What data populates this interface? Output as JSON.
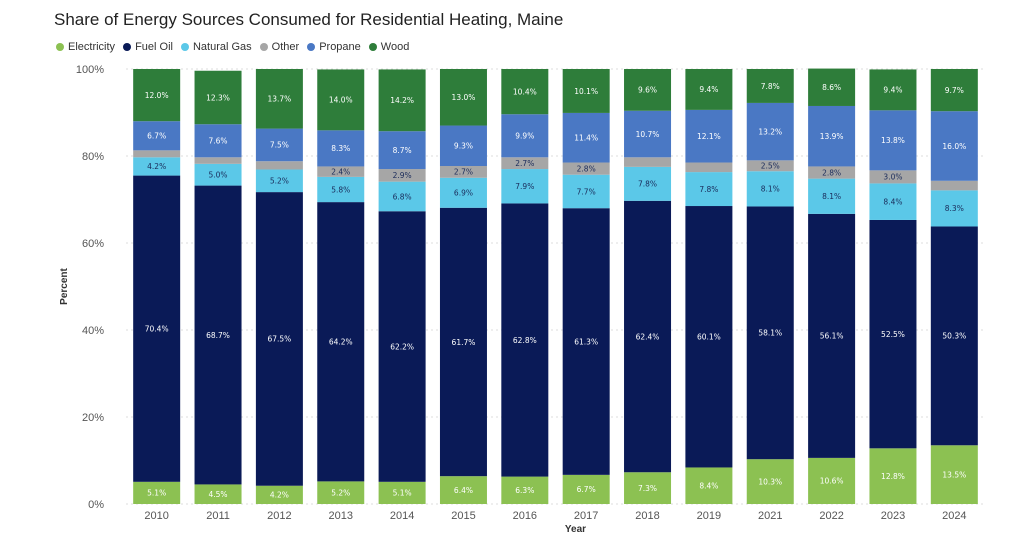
{
  "chart_data": {
    "type": "bar",
    "stacked": true,
    "title": "Share of Energy Sources Consumed for Residential Heating, Maine",
    "xlabel": "Year",
    "ylabel": "Percent",
    "ylim": [
      0,
      100
    ],
    "yticks": [
      "0%",
      "20%",
      "40%",
      "60%",
      "80%",
      "100%"
    ],
    "grid": true,
    "legend_position": "top-left",
    "categories": [
      "2010",
      "2011",
      "2012",
      "2013",
      "2014",
      "2015",
      "2016",
      "2017",
      "2018",
      "2019",
      "2021",
      "2022",
      "2023",
      "2024"
    ],
    "series": [
      {
        "name": "Electricity",
        "color": "#8cc152",
        "label_color": "#ffffff",
        "values": [
          5.1,
          4.5,
          4.2,
          5.2,
          5.1,
          6.4,
          6.3,
          6.7,
          7.3,
          8.4,
          10.3,
          10.6,
          12.8,
          13.5
        ],
        "labels": [
          "5.1%",
          "4.5%",
          "4.2%",
          "5.2%",
          "5.1%",
          "6.4%",
          "6.3%",
          "6.7%",
          "7.3%",
          "8.4%",
          "10.3%",
          "10.6%",
          "12.8%",
          "13.5%"
        ]
      },
      {
        "name": "Fuel Oil",
        "color": "#0a1a57",
        "label_color": "#ffffff",
        "values": [
          70.4,
          68.7,
          67.5,
          64.2,
          62.2,
          61.7,
          62.8,
          61.3,
          62.4,
          60.1,
          58.1,
          56.1,
          52.5,
          50.3
        ],
        "labels": [
          "70.4%",
          "68.7%",
          "67.5%",
          "64.2%",
          "62.2%",
          "61.7%",
          "62.8%",
          "61.3%",
          "62.4%",
          "60.1%",
          "58.1%",
          "56.1%",
          "52.5%",
          "50.3%"
        ]
      },
      {
        "name": "Natural Gas",
        "color": "#5bc8e8",
        "label_color": "#1a2b5a",
        "values": [
          4.2,
          5.0,
          5.2,
          5.8,
          6.8,
          6.9,
          7.9,
          7.7,
          7.8,
          7.8,
          8.1,
          8.1,
          8.4,
          8.3
        ],
        "labels": [
          "4.2%",
          "5.0%",
          "5.2%",
          "5.8%",
          "6.8%",
          "6.9%",
          "7.9%",
          "7.7%",
          "7.8%",
          "7.8%",
          "8.1%",
          "8.1%",
          "8.4%",
          "8.3%"
        ]
      },
      {
        "name": "Other",
        "color": "#a6a6a6",
        "label_color": "#1a2b5a",
        "values": [
          1.6,
          1.5,
          1.9,
          2.4,
          2.9,
          2.7,
          2.7,
          2.8,
          2.2,
          2.2,
          2.5,
          2.8,
          3.0,
          2.2
        ],
        "labels": [
          "",
          "",
          "",
          "2.4%",
          "2.9%",
          "2.7%",
          "2.7%",
          "2.8%",
          "",
          "",
          "2.5%",
          "2.8%",
          "3.0%",
          ""
        ]
      },
      {
        "name": "Propane",
        "color": "#4a78c4",
        "label_color": "#ffffff",
        "values": [
          6.7,
          7.6,
          7.5,
          8.3,
          8.7,
          9.3,
          9.9,
          11.4,
          10.7,
          12.1,
          13.2,
          13.9,
          13.8,
          16.0
        ],
        "labels": [
          "6.7%",
          "7.6%",
          "7.5%",
          "8.3%",
          "8.7%",
          "9.3%",
          "9.9%",
          "11.4%",
          "10.7%",
          "12.1%",
          "13.2%",
          "13.9%",
          "13.8%",
          "16.0%"
        ]
      },
      {
        "name": "Wood",
        "color": "#2e7d3a",
        "label_color": "#ffffff",
        "values": [
          12.0,
          12.3,
          13.7,
          14.0,
          14.2,
          13.0,
          10.4,
          10.1,
          9.6,
          9.4,
          7.8,
          8.6,
          9.4,
          9.7
        ],
        "labels": [
          "12.0%",
          "12.3%",
          "13.7%",
          "14.0%",
          "14.2%",
          "13.0%",
          "10.4%",
          "10.1%",
          "9.6%",
          "9.4%",
          "7.8%",
          "8.6%",
          "9.4%",
          "9.7%"
        ]
      }
    ]
  }
}
